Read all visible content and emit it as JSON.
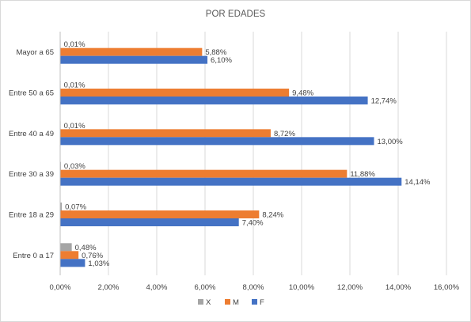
{
  "chart_data": {
    "type": "bar",
    "orientation": "horizontal",
    "title": "POR EDADES",
    "categories": [
      "Entre 0 a 17",
      "Entre 18 a 29",
      "Entre 30 a 39",
      "Entre 40 a 49",
      "Entre 50 a 65",
      "Mayor a 65"
    ],
    "series": [
      {
        "name": "X",
        "color": "#a5a5a5",
        "values": [
          0.48,
          0.07,
          0.03,
          0.01,
          0.01,
          0.01
        ],
        "labels": [
          "0,48%",
          "0,07%",
          "0,03%",
          "0,01%",
          "0,01%",
          "0,01%"
        ]
      },
      {
        "name": "M",
        "color": "#ed7d31",
        "values": [
          0.76,
          8.24,
          11.88,
          8.72,
          9.48,
          5.88
        ],
        "labels": [
          "0,76%",
          "8,24%",
          "11,88%",
          "8,72%",
          "9,48%",
          "5,88%"
        ]
      },
      {
        "name": "F",
        "color": "#4472c4",
        "values": [
          1.03,
          7.4,
          14.14,
          13.0,
          12.74,
          6.1
        ],
        "labels": [
          "1,03%",
          "7,40%",
          "14,14%",
          "13,00%",
          "12,74%",
          "6,10%"
        ]
      }
    ],
    "xlim": [
      0,
      16
    ],
    "xticks": [
      0,
      2,
      4,
      6,
      8,
      10,
      12,
      14,
      16
    ],
    "xtick_labels": [
      "0,00%",
      "2,00%",
      "4,00%",
      "6,00%",
      "8,00%",
      "10,00%",
      "12,00%",
      "14,00%",
      "16,00%"
    ],
    "grid": true,
    "legend_position": "bottom"
  }
}
